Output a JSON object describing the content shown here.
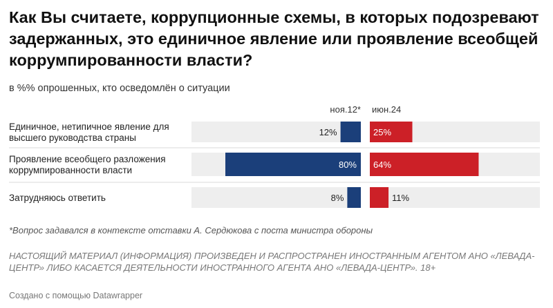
{
  "title": "Как Вы считаете, коррупционные схемы, в которых подозревают задержанных, это единичное явление или проявление всеобщей коррумпированности власти?",
  "subtitle": "в %% опрошенных, кто осведомлён о ситуации",
  "note": "*Вопрос задавался в контексте отставки А. Сердюкова с поста министра обороны",
  "disclaimer": "НАСТОЯЩИЙ МАТЕРИАЛ (ИНФОРМАЦИЯ) ПРОИЗВЕДЕН И РАСПРОСТРАНЕН ИНОСТРАННЫМ АГЕНТОМ АНО «ЛЕВАДА-ЦЕНТР» ЛИБО КАСАЕТСЯ ДЕЯТЕЛЬНОСТИ ИНОСТРАННОГО АГЕНТА АНО «ЛЕВАДА-ЦЕНТР». 18+",
  "credit": "Создано с помощью Datawrapper",
  "colors": {
    "series1": "#1b3f7a",
    "series2": "#cc2027",
    "track": "#eeeeee"
  },
  "chart_data": {
    "type": "bar",
    "orientation": "horizontal",
    "layout": "split-bars",
    "categories": [
      "Единичное, нетипичное явление для высшего руководства страны",
      "Проявление всеобщего разложения коррумпированности власти",
      "Затрудняюсь ответить"
    ],
    "series": [
      {
        "name": "ноя.12*",
        "values": [
          12,
          80,
          8
        ],
        "labels": [
          "12%",
          "80%",
          "8%"
        ]
      },
      {
        "name": "июн.24",
        "values": [
          25,
          64,
          11
        ],
        "labels": [
          "25%",
          "64%",
          "11%"
        ]
      }
    ],
    "xlim": [
      0,
      100
    ],
    "unit": "%",
    "legend": "top"
  }
}
